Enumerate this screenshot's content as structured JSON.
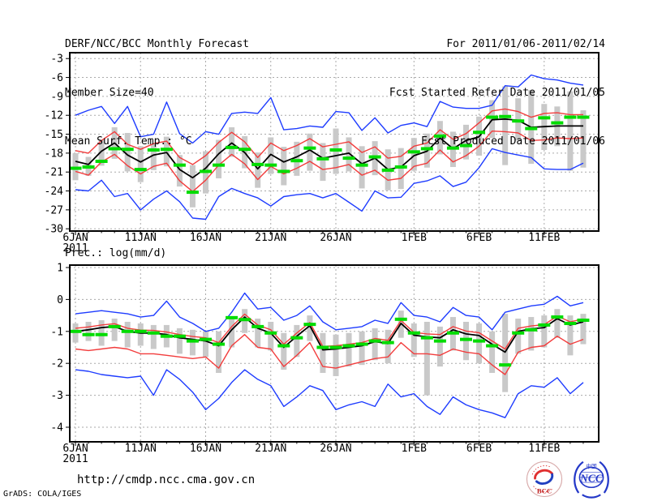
{
  "header": {
    "title": "DERF/NCC/BCC Monthly Forecast",
    "member_size": "Member Size=40",
    "for_range": "For 2011/01/06-2011/02/14",
    "fcst_started": "Fcst Started Refer Date 2011/01/05",
    "fcst_produced": "Fcst Produced Date 2011/01/06"
  },
  "panel1_label": "Mean Surf. Temp.: °C",
  "panel2_label": "Prec.: log(mm/d)",
  "footer": {
    "url": "http://cmdp.ncc.cma.gov.cn",
    "grads_credit": "GrADS: COLA/IGES",
    "logo_bcc_text": "BCC",
    "logo_ncc_text": "NCC",
    "logo_ncc_cn": "中国"
  },
  "colors": {
    "blue": "#1e3cff",
    "red": "#f23c3c",
    "black": "#000000",
    "green": "#00dc00",
    "gray": "#c9c9c9"
  },
  "chart_data": [
    {
      "name": "surface-temperature-panel",
      "type": "line",
      "title": "Mean Surf. Temp.: °C",
      "ylabel": "°C",
      "x_start": "2011-01-06",
      "x_end": "2011-02-14",
      "n_days": 40,
      "year": "2011",
      "grid": true,
      "legend": "none",
      "ylim": [
        -30.4,
        -2.1
      ],
      "yticks": [
        {
          "value": -3,
          "label": "-3"
        },
        {
          "value": -6,
          "label": "-6"
        },
        {
          "value": -9,
          "label": "-9"
        },
        {
          "value": -12,
          "label": "-12"
        },
        {
          "value": -15,
          "label": "-15"
        },
        {
          "value": -18,
          "label": "-18"
        },
        {
          "value": -21,
          "label": "-21"
        },
        {
          "value": -24,
          "label": "-24"
        },
        {
          "value": -27,
          "label": "-27"
        },
        {
          "value": -30,
          "label": "-30"
        }
      ],
      "xticks": [
        {
          "day": 0,
          "label": "6JAN"
        },
        {
          "day": 5,
          "label": "11JAN"
        },
        {
          "day": 10,
          "label": "16JAN"
        },
        {
          "day": 15,
          "label": "21JAN"
        },
        {
          "day": 20,
          "label": "26JAN"
        },
        {
          "day": 26,
          "label": "1FEB"
        },
        {
          "day": 31,
          "label": "6FEB"
        },
        {
          "day": 36,
          "label": "11FEB"
        }
      ],
      "series": [
        {
          "name": "ensemble-max",
          "color": "blue",
          "values": [
            -12.0,
            -11.2,
            -10.6,
            -13.3,
            -10.6,
            -15.4,
            -15.0,
            -9.9,
            -14.9,
            -16.4,
            -14.6,
            -15.0,
            -11.7,
            -11.5,
            -11.7,
            -9.2,
            -14.3,
            -14.1,
            -13.7,
            -13.9,
            -11.4,
            -11.6,
            -14.4,
            -12.4,
            -14.8,
            -13.6,
            -13.2,
            -13.8,
            -9.8,
            -10.7,
            -10.9,
            -10.9,
            -10.4,
            -7.3,
            -7.5,
            -5.6,
            -6.2,
            -6.4,
            -6.9,
            -7.2
          ]
        },
        {
          "name": "ensemble-min",
          "color": "blue",
          "values": [
            -23.8,
            -24.0,
            -22.3,
            -24.9,
            -24.4,
            -27.0,
            -25.3,
            -24.0,
            -25.7,
            -28.3,
            -28.5,
            -24.9,
            -23.6,
            -24.4,
            -25.1,
            -26.4,
            -24.9,
            -24.6,
            -24.4,
            -25.1,
            -24.4,
            -25.8,
            -27.2,
            -24.0,
            -25.1,
            -25.0,
            -22.8,
            -22.4,
            -21.6,
            -23.3,
            -22.6,
            -20.3,
            -17.3,
            -17.9,
            -18.3,
            -18.7,
            -20.5,
            -20.6,
            -20.6,
            -19.6
          ]
        },
        {
          "name": "upper-envelope",
          "color": "red",
          "values": [
            -17.6,
            -18.0,
            -16.0,
            -14.6,
            -16.6,
            -17.4,
            -16.5,
            -16.1,
            -18.7,
            -19.8,
            -18.4,
            -16.3,
            -14.7,
            -16.2,
            -18.7,
            -16.4,
            -17.6,
            -16.8,
            -15.7,
            -17.0,
            -16.6,
            -16.2,
            -17.9,
            -17.0,
            -18.8,
            -18.5,
            -16.9,
            -16.4,
            -14.3,
            -15.8,
            -14.9,
            -13.2,
            -11.3,
            -11.0,
            -11.4,
            -12.3,
            -11.7,
            -11.6,
            -11.9,
            -11.9
          ]
        },
        {
          "name": "lower-envelope",
          "color": "red",
          "values": [
            -20.9,
            -21.5,
            -19.4,
            -18.2,
            -20.0,
            -21.3,
            -20.1,
            -19.6,
            -22.4,
            -24.1,
            -22.3,
            -19.9,
            -18.2,
            -19.7,
            -22.2,
            -20.1,
            -21.3,
            -20.4,
            -19.3,
            -20.6,
            -20.3,
            -19.8,
            -21.5,
            -20.7,
            -22.3,
            -22.0,
            -20.1,
            -19.6,
            -17.5,
            -19.4,
            -18.4,
            -16.9,
            -14.5,
            -14.6,
            -14.8,
            -16.0,
            -15.9,
            -15.6,
            -15.7,
            -15.6
          ]
        },
        {
          "name": "ensemble-mean",
          "color": "black",
          "values": [
            -19.3,
            -19.8,
            -17.7,
            -16.4,
            -18.3,
            -19.4,
            -18.3,
            -17.9,
            -20.6,
            -21.9,
            -20.4,
            -18.1,
            -16.4,
            -17.9,
            -20.5,
            -18.2,
            -19.4,
            -18.6,
            -17.5,
            -18.8,
            -18.4,
            -18.0,
            -19.7,
            -18.8,
            -20.6,
            -20.2,
            -18.4,
            -17.7,
            -15.6,
            -17.3,
            -16.0,
            -15.4,
            -12.7,
            -12.6,
            -12.8,
            -13.9,
            -13.8,
            -13.7,
            -13.7,
            -13.7
          ]
        }
      ],
      "bars": {
        "name": "member-spread-bar",
        "color": "gray",
        "low": [
          -22.3,
          -21.6,
          -20.0,
          -18.9,
          -20.9,
          -22.6,
          -20.7,
          -20.1,
          -23.3,
          -26.6,
          -24.4,
          -22.0,
          -18.6,
          -20.4,
          -23.5,
          -21.3,
          -23.1,
          -21.6,
          -20.8,
          -22.4,
          -21.3,
          -20.9,
          -23.6,
          -21.5,
          -23.9,
          -23.7,
          -20.8,
          -20.3,
          -18.2,
          -20.2,
          -19.0,
          -18.4,
          -15.6,
          -19.9,
          -16.0,
          -19.7,
          -17.5,
          -16.9,
          -20.8,
          -20.3
        ],
        "high": [
          -18.0,
          -18.6,
          -15.9,
          -13.9,
          -14.8,
          -16.9,
          -16.6,
          -15.4,
          -18.3,
          -19.9,
          -17.7,
          -15.9,
          -13.9,
          -15.3,
          -17.9,
          -15.5,
          -17.0,
          -16.2,
          -14.9,
          -16.4,
          -14.1,
          -15.5,
          -16.9,
          -16.1,
          -17.4,
          -17.2,
          -15.6,
          -14.9,
          -12.9,
          -14.6,
          -13.5,
          -12.2,
          -9.6,
          -7.4,
          -9.3,
          -8.0,
          -10.2,
          -10.6,
          -8.2,
          -11.2
        ]
      },
      "dashes": {
        "name": "daily-reference-dash",
        "color": "green",
        "values": [
          -20.4,
          -20.2,
          -19.3,
          -17.3,
          -17.4,
          -20.6,
          -17.5,
          -17.4,
          -19.9,
          -24.2,
          -20.9,
          -19.9,
          -17.1,
          -17.4,
          -19.8,
          -19.9,
          -20.9,
          -19.2,
          -17.2,
          -18.9,
          -17.5,
          -18.8,
          -19.9,
          -18.6,
          -20.7,
          -20.2,
          -17.8,
          -17.3,
          -15.3,
          -17.2,
          -16.8,
          -14.7,
          -12.3,
          -12.2,
          -12.9,
          -14.1,
          -12.4,
          -13.2,
          -12.3,
          -12.3
        ]
      }
    },
    {
      "name": "precipitation-panel",
      "type": "line",
      "title": "Prec.: log(mm/d)",
      "ylabel": "log(mm/d)",
      "x_start": "2011-01-06",
      "x_end": "2011-02-14",
      "n_days": 40,
      "year": "2011",
      "grid": true,
      "legend": "none",
      "ylim": [
        -4.46,
        1.08
      ],
      "yticks": [
        {
          "value": 1,
          "label": "1"
        },
        {
          "value": 0,
          "label": "0"
        },
        {
          "value": -1,
          "label": "-1"
        },
        {
          "value": -2,
          "label": "-2"
        },
        {
          "value": -3,
          "label": "-3"
        },
        {
          "value": -4,
          "label": "-4"
        }
      ],
      "xticks": [
        {
          "day": 0,
          "label": "6JAN"
        },
        {
          "day": 5,
          "label": "11JAN"
        },
        {
          "day": 10,
          "label": "16JAN"
        },
        {
          "day": 15,
          "label": "21JAN"
        },
        {
          "day": 20,
          "label": "26JAN"
        },
        {
          "day": 26,
          "label": "1FEB"
        },
        {
          "day": 31,
          "label": "6FEB"
        },
        {
          "day": 36,
          "label": "11FEB"
        }
      ],
      "series": [
        {
          "name": "ensemble-max",
          "color": "blue",
          "values": [
            -0.45,
            -0.4,
            -0.35,
            -0.4,
            -0.45,
            -0.55,
            -0.5,
            -0.05,
            -0.55,
            -0.75,
            -1.0,
            -0.9,
            -0.4,
            0.2,
            -0.3,
            -0.25,
            -0.65,
            -0.5,
            -0.2,
            -0.7,
            -0.95,
            -0.9,
            -0.85,
            -0.65,
            -0.75,
            -0.1,
            -0.5,
            -0.55,
            -0.7,
            -0.25,
            -0.5,
            -0.55,
            -0.95,
            -0.4,
            -0.3,
            -0.2,
            -0.15,
            0.1,
            -0.2,
            -0.1
          ]
        },
        {
          "name": "ensemble-min",
          "color": "blue",
          "values": [
            -2.2,
            -2.25,
            -2.35,
            -2.4,
            -2.45,
            -2.4,
            -3.0,
            -2.2,
            -2.5,
            -2.9,
            -3.45,
            -3.1,
            -2.6,
            -2.2,
            -2.5,
            -2.7,
            -3.35,
            -3.05,
            -2.7,
            -2.85,
            -3.45,
            -3.3,
            -3.2,
            -3.35,
            -2.65,
            -3.05,
            -2.95,
            -3.35,
            -3.6,
            -3.05,
            -3.3,
            -3.45,
            -3.55,
            -3.7,
            -2.95,
            -2.7,
            -2.75,
            -2.45,
            -2.95,
            -2.6
          ]
        },
        {
          "name": "upper-envelope",
          "color": "red",
          "values": [
            -0.9,
            -0.86,
            -0.8,
            -0.76,
            -0.9,
            -0.96,
            -0.97,
            -1.02,
            -1.1,
            -1.16,
            -1.2,
            -1.35,
            -0.85,
            -0.46,
            -0.8,
            -0.95,
            -1.4,
            -1.05,
            -0.72,
            -1.47,
            -1.45,
            -1.4,
            -1.35,
            -1.22,
            -1.28,
            -0.66,
            -1.03,
            -1.08,
            -1.1,
            -0.85,
            -0.99,
            -1.04,
            -1.3,
            -1.55,
            -0.9,
            -0.83,
            -0.79,
            -0.52,
            -0.7,
            -0.61
          ]
        },
        {
          "name": "lower-envelope",
          "color": "red",
          "values": [
            -1.55,
            -1.6,
            -1.55,
            -1.5,
            -1.55,
            -1.7,
            -1.7,
            -1.75,
            -1.8,
            -1.85,
            -1.8,
            -2.15,
            -1.45,
            -1.1,
            -1.5,
            -1.55,
            -2.1,
            -1.75,
            -1.35,
            -2.1,
            -2.15,
            -2.05,
            -1.95,
            -1.85,
            -1.8,
            -1.35,
            -1.7,
            -1.7,
            -1.75,
            -1.55,
            -1.65,
            -1.7,
            -2.05,
            -2.35,
            -1.65,
            -1.5,
            -1.45,
            -1.15,
            -1.4,
            -1.25
          ]
        },
        {
          "name": "ensemble-mean",
          "color": "black",
          "values": [
            -1.0,
            -0.95,
            -0.88,
            -0.85,
            -1.0,
            -1.05,
            -1.05,
            -1.1,
            -1.2,
            -1.25,
            -1.3,
            -1.45,
            -0.95,
            -0.55,
            -0.9,
            -1.05,
            -1.5,
            -1.15,
            -0.82,
            -1.58,
            -1.55,
            -1.5,
            -1.45,
            -1.32,
            -1.38,
            -0.75,
            -1.12,
            -1.17,
            -1.2,
            -0.95,
            -1.08,
            -1.13,
            -1.4,
            -1.65,
            -1.0,
            -0.92,
            -0.88,
            -0.6,
            -0.8,
            -0.7
          ]
        }
      ],
      "bars": {
        "name": "member-spread-bar",
        "color": "gray",
        "low": [
          -1.35,
          -1.3,
          -1.45,
          -1.3,
          -1.5,
          -1.45,
          -1.55,
          -1.5,
          -1.7,
          -1.75,
          -1.8,
          -2.3,
          -1.5,
          -1.05,
          -1.5,
          -1.6,
          -2.2,
          -1.8,
          -1.3,
          -2.3,
          -2.4,
          -2.1,
          -2.05,
          -1.9,
          -2.0,
          -1.2,
          -1.8,
          -3.0,
          -2.1,
          -1.6,
          -1.9,
          -2.0,
          -2.3,
          -2.9,
          -1.7,
          -1.6,
          -1.5,
          -1.2,
          -1.75,
          -1.4
        ],
        "high": [
          -0.75,
          -0.7,
          -0.65,
          -0.6,
          -0.7,
          -0.75,
          -0.8,
          -0.8,
          -0.9,
          -0.95,
          -1.0,
          -1.0,
          -0.55,
          -0.3,
          -0.6,
          -0.7,
          -1.05,
          -0.8,
          -0.5,
          -1.05,
          -1.1,
          -1.05,
          -1.0,
          -0.9,
          -0.95,
          -0.35,
          -0.75,
          -0.7,
          -0.85,
          -0.55,
          -0.7,
          -0.75,
          -1.0,
          -0.45,
          -0.6,
          -0.55,
          -0.5,
          -0.3,
          -0.5,
          -0.45
        ]
      },
      "dashes": {
        "name": "daily-reference-dash",
        "color": "green",
        "values": [
          -1.0,
          -1.1,
          -1.1,
          -0.85,
          -1.0,
          -1.0,
          -1.05,
          -1.15,
          -1.15,
          -1.3,
          -1.25,
          -1.4,
          -0.57,
          -0.63,
          -0.85,
          -1.05,
          -1.45,
          -1.2,
          -0.78,
          -1.5,
          -1.5,
          -1.45,
          -1.4,
          -1.3,
          -1.35,
          -0.62,
          -1.05,
          -1.2,
          -1.3,
          -1.05,
          -1.25,
          -1.3,
          -1.45,
          -2.05,
          -1.05,
          -0.95,
          -0.8,
          -0.55,
          -0.75,
          -0.65
        ]
      }
    }
  ]
}
